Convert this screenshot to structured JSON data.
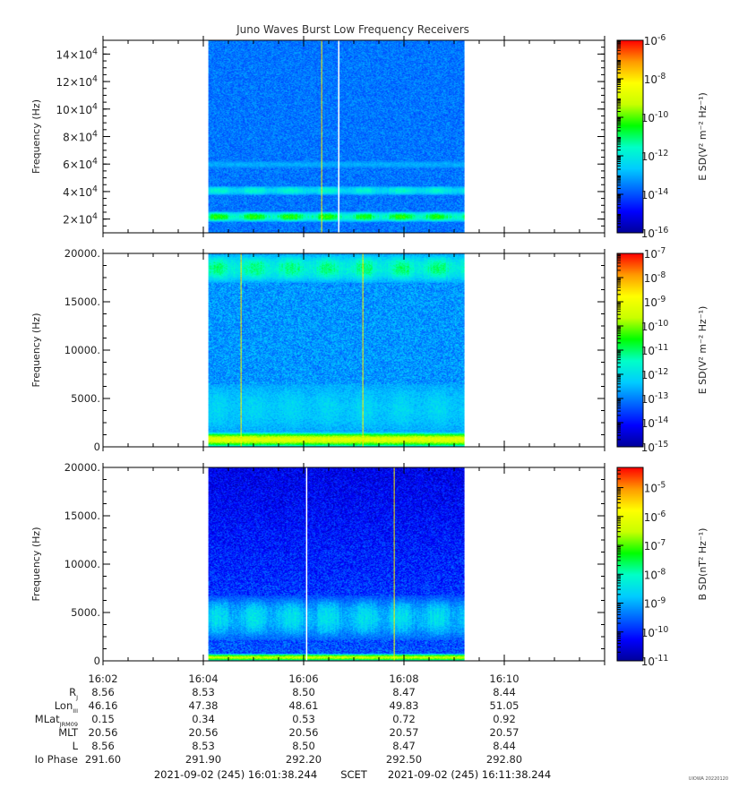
{
  "title": "Juno Waves Burst Low Frequency Receivers",
  "watermark": "UIOWA 20220120",
  "colors": {
    "colormap": [
      "#00009a",
      "#0000ff",
      "#0066ff",
      "#00ccff",
      "#00ffc8",
      "#00ff00",
      "#c8ff00",
      "#ffff00",
      "#ff9900",
      "#ff0000"
    ]
  },
  "time_axis": {
    "start_minutes": 962.0,
    "end_minutes": 972.0,
    "data_start_minutes": 964.1,
    "data_end_minutes": 969.2,
    "tick_labels": [
      "16:02",
      "16:04",
      "16:06",
      "16:08",
      "16:10"
    ],
    "tick_values": [
      962,
      964,
      966,
      968,
      970
    ]
  },
  "ephemeris": {
    "rows": [
      {
        "label": "R",
        "sub": "J",
        "values": [
          "8.56",
          "8.53",
          "8.50",
          "8.47",
          "8.44"
        ]
      },
      {
        "label": "Lon",
        "sub": "III",
        "values": [
          "46.16",
          "47.38",
          "48.61",
          "49.83",
          "51.05"
        ]
      },
      {
        "label": "MLat",
        "sub": "JRM09",
        "values": [
          "0.15",
          "0.34",
          "0.53",
          "0.72",
          "0.92"
        ]
      },
      {
        "label": "MLT",
        "sub": "",
        "values": [
          "20.56",
          "20.56",
          "20.56",
          "20.57",
          "20.57"
        ]
      },
      {
        "label": "L",
        "sub": "",
        "values": [
          "8.56",
          "8.53",
          "8.50",
          "8.47",
          "8.44"
        ]
      },
      {
        "label": "Io Phase",
        "sub": "",
        "values": [
          "291.60",
          "291.90",
          "292.20",
          "292.50",
          "292.80"
        ]
      }
    ]
  },
  "footer": {
    "start": "2021-09-02 (245) 16:01:38.244",
    "scet": "SCET",
    "end": "2021-09-02 (245) 16:11:38.244"
  },
  "chart_data": [
    {
      "type": "heatmap",
      "title": "Juno Waves Burst Low Frequency Receivers",
      "ylabel": "Frequency (Hz)",
      "ylim": [
        10000,
        150000
      ],
      "yticks": [
        20000,
        40000,
        60000,
        80000,
        100000,
        120000,
        140000
      ],
      "yticklabels": [
        {
          "m": "2",
          "e": "4"
        },
        {
          "m": "4",
          "e": "4"
        },
        {
          "m": "6",
          "e": "4"
        },
        {
          "m": "8",
          "e": "4"
        },
        {
          "m": "10",
          "e": "4"
        },
        {
          "m": "12",
          "e": "4"
        },
        {
          "m": "14",
          "e": "4"
        }
      ],
      "colorbar": {
        "label": "E SD",
        "units": "V² m⁻² Hz⁻¹",
        "range_log10": [
          -16,
          -6
        ],
        "ticks": [
          {
            "m": "10",
            "e": "-6"
          },
          {
            "m": "10",
            "e": "-8"
          },
          {
            "m": "10",
            "e": "-10"
          },
          {
            "m": "10",
            "e": "-12"
          },
          {
            "m": "10",
            "e": "-14"
          },
          {
            "m": "10",
            "e": "-16"
          }
        ],
        "tick_values": [
          -6,
          -8,
          -10,
          -12,
          -14,
          -16
        ]
      },
      "features": {
        "background_log10": -13.6,
        "bands": [
          {
            "freq": 22000,
            "half_width": 4000,
            "level_log10": -10.2,
            "pulsed": true
          },
          {
            "freq": 41000,
            "half_width": 3500,
            "level_log10": -11.6,
            "pulsed": true
          },
          {
            "freq": 60000,
            "half_width": 2500,
            "level_log10": -13.0,
            "pulsed": false
          }
        ],
        "gap_times_minutes": [
          966.7
        ],
        "spike_times_minutes": [
          966.35
        ]
      }
    },
    {
      "type": "heatmap",
      "ylabel": "Frequency (Hz)",
      "ylim": [
        0,
        20000
      ],
      "yticks": [
        0,
        5000,
        10000,
        15000,
        20000
      ],
      "yticklabels": [
        "0",
        "5000.",
        "10000.",
        "15000.",
        "20000."
      ],
      "colorbar": {
        "label": "E SD",
        "units": "V² m⁻² Hz⁻¹",
        "range_log10": [
          -15,
          -7
        ],
        "ticks": [
          {
            "m": "10",
            "e": "-7"
          },
          {
            "m": "10",
            "e": "-8"
          },
          {
            "m": "10",
            "e": "-9"
          },
          {
            "m": "10",
            "e": "-10"
          },
          {
            "m": "10",
            "e": "-11"
          },
          {
            "m": "10",
            "e": "-12"
          },
          {
            "m": "10",
            "e": "-13"
          },
          {
            "m": "10",
            "e": "-14"
          },
          {
            "m": "10",
            "e": "-15"
          }
        ],
        "tick_values": [
          -7,
          -8,
          -9,
          -10,
          -11,
          -12,
          -13,
          -14,
          -15
        ]
      },
      "features": {
        "background_log10": -12.8,
        "bands": [
          {
            "freq": 18500,
            "half_width": 1500,
            "level_log10": -11.0,
            "pulsed": true
          },
          {
            "freq": 4000,
            "half_width": 2500,
            "level_log10": -12.1,
            "pulsed": true
          },
          {
            "freq": 800,
            "half_width": 800,
            "level_log10": -9.3,
            "pulsed": false
          }
        ],
        "gap_times_minutes": [],
        "spike_times_minutes": [
          964.75,
          967.18
        ]
      }
    },
    {
      "type": "heatmap",
      "ylabel": "Frequency (Hz)",
      "ylim": [
        0,
        20000
      ],
      "yticks": [
        0,
        5000,
        10000,
        15000,
        20000
      ],
      "yticklabels": [
        "0",
        "5000.",
        "10000.",
        "15000.",
        "20000."
      ],
      "colorbar": {
        "label": "B SD",
        "units": "nT² Hz⁻¹",
        "range_log10": [
          -11,
          -4.3
        ],
        "ticks": [
          {
            "m": "10",
            "e": "-5"
          },
          {
            "m": "10",
            "e": "-6"
          },
          {
            "m": "10",
            "e": "-7"
          },
          {
            "m": "10",
            "e": "-8"
          },
          {
            "m": "10",
            "e": "-9"
          },
          {
            "m": "10",
            "e": "-10"
          },
          {
            "m": "10",
            "e": "-11"
          }
        ],
        "tick_values": [
          -5,
          -6,
          -7,
          -8,
          -9,
          -10,
          -11
        ]
      },
      "features": {
        "background_log10": -9.6,
        "top_log10": -10.4,
        "bands": [
          {
            "freq": 4500,
            "half_width": 2300,
            "level_log10": -8.4,
            "pulsed": true
          },
          {
            "freq": 400,
            "half_width": 400,
            "level_log10": -6.5,
            "pulsed": false
          }
        ],
        "gap_times_minutes": [
          966.06
        ],
        "spike_times_minutes": [
          967.8
        ]
      }
    }
  ]
}
